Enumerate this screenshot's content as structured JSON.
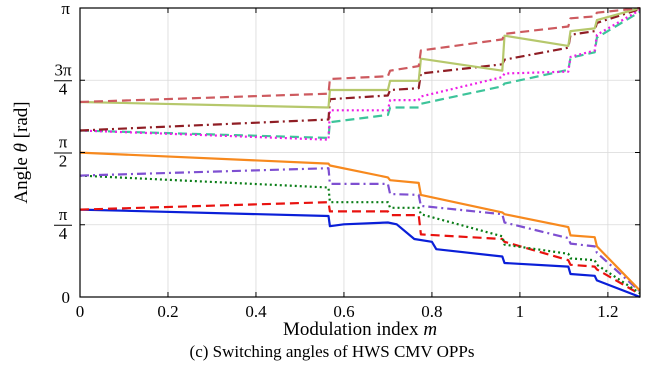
{
  "chart_data": {
    "type": "line",
    "caption": "(c) Switching angles of HWS CMV OPPs",
    "xlabel": "Modulation index",
    "xlabel_symbol": "m",
    "ylabel": "Angle",
    "ylabel_symbol": "θ",
    "ylabel_unit": "[rad]",
    "xlim": [
      0,
      1.273
    ],
    "ylim": [
      0,
      3.1416
    ],
    "grid": true,
    "x_ticks": [
      {
        "value": 0,
        "label": "0"
      },
      {
        "value": 0.2,
        "label": "0.2"
      },
      {
        "value": 0.4,
        "label": "0.4"
      },
      {
        "value": 0.6,
        "label": "0.6"
      },
      {
        "value": 0.8,
        "label": "0.8"
      },
      {
        "value": 1.0,
        "label": "1"
      },
      {
        "value": 1.2,
        "label": "1.2"
      }
    ],
    "y_ticks": [
      {
        "value": 0,
        "label": "0"
      },
      {
        "value": 0.7854,
        "label": "π/4",
        "num": "π",
        "den": "4"
      },
      {
        "value": 1.5708,
        "label": "π/2",
        "num": "π",
        "den": "2"
      },
      {
        "value": 2.3562,
        "label": "3π/4",
        "num": "3π",
        "den": "4"
      },
      {
        "value": 3.1416,
        "label": "π",
        "num": "π",
        "den": ""
      }
    ],
    "series": [
      {
        "color": "#0a1fd8",
        "dash": "solid",
        "points": [
          [
            0,
            0.95
          ],
          [
            0.565,
            0.88
          ],
          [
            0.568,
            0.77
          ],
          [
            0.6,
            0.79
          ],
          [
            0.7,
            0.81
          ],
          [
            0.72,
            0.79
          ],
          [
            0.76,
            0.63
          ],
          [
            0.8,
            0.6
          ],
          [
            0.81,
            0.52
          ],
          [
            0.96,
            0.44
          ],
          [
            0.965,
            0.37
          ],
          [
            1.11,
            0.33
          ],
          [
            1.115,
            0.25
          ],
          [
            1.17,
            0.23
          ],
          [
            1.175,
            0.18
          ],
          [
            1.273,
            0
          ]
        ]
      },
      {
        "color": "#e8120f",
        "dash": "dash",
        "points": [
          [
            0,
            0.95
          ],
          [
            0.565,
            1.03
          ],
          [
            0.568,
            0.93
          ],
          [
            0.7,
            0.93
          ],
          [
            0.705,
            0.89
          ],
          [
            0.77,
            0.89
          ],
          [
            0.775,
            0.68
          ],
          [
            0.96,
            0.63
          ],
          [
            0.965,
            0.6
          ],
          [
            1.11,
            0.4
          ],
          [
            1.115,
            0.35
          ],
          [
            1.17,
            0.33
          ],
          [
            1.175,
            0.3
          ],
          [
            1.273,
            0.03
          ]
        ]
      },
      {
        "color": "#0a7d17",
        "dash": "dot",
        "points": [
          [
            0,
            1.32
          ],
          [
            0.565,
            1.19
          ],
          [
            0.568,
            1.03
          ],
          [
            0.7,
            1.03
          ],
          [
            0.705,
            0.97
          ],
          [
            0.77,
            0.97
          ],
          [
            0.775,
            0.9
          ],
          [
            0.96,
            0.66
          ],
          [
            0.965,
            0.57
          ],
          [
            1.11,
            0.47
          ],
          [
            1.115,
            0.42
          ],
          [
            1.17,
            0.4
          ],
          [
            1.175,
            0.35
          ],
          [
            1.273,
            0.04
          ]
        ]
      },
      {
        "color": "#7e4fd1",
        "dash": "dashdot",
        "points": [
          [
            0,
            1.32
          ],
          [
            0.565,
            1.4
          ],
          [
            0.568,
            1.23
          ],
          [
            0.7,
            1.23
          ],
          [
            0.705,
            1.12
          ],
          [
            0.77,
            1.11
          ],
          [
            0.775,
            0.99
          ],
          [
            0.96,
            0.9
          ],
          [
            0.965,
            0.81
          ],
          [
            1.11,
            0.64
          ],
          [
            1.115,
            0.58
          ],
          [
            1.17,
            0.55
          ],
          [
            1.175,
            0.48
          ],
          [
            1.273,
            0.06
          ]
        ]
      },
      {
        "color": "#f7891e",
        "dash": "solid",
        "points": [
          [
            0,
            1.57
          ],
          [
            0.565,
            1.45
          ],
          [
            0.568,
            1.43
          ],
          [
            0.7,
            1.3
          ],
          [
            0.705,
            1.27
          ],
          [
            0.77,
            1.24
          ],
          [
            0.775,
            1.11
          ],
          [
            0.96,
            0.92
          ],
          [
            0.965,
            0.9
          ],
          [
            1.11,
            0.76
          ],
          [
            1.115,
            0.67
          ],
          [
            1.17,
            0.65
          ],
          [
            1.175,
            0.55
          ],
          [
            1.273,
            0.07
          ]
        ]
      },
      {
        "color": "#3dc49a",
        "dash": "dash",
        "points": [
          [
            0,
            1.81
          ],
          [
            0.565,
            1.73
          ],
          [
            0.568,
            1.9
          ],
          [
            0.7,
            1.98
          ],
          [
            0.705,
            2.06
          ],
          [
            0.77,
            2.06
          ],
          [
            0.775,
            2.1
          ],
          [
            0.96,
            2.29
          ],
          [
            0.965,
            2.32
          ],
          [
            1.11,
            2.47
          ],
          [
            1.115,
            2.6
          ],
          [
            1.17,
            2.66
          ],
          [
            1.175,
            2.82
          ],
          [
            1.273,
            3.1
          ]
        ]
      },
      {
        "color": "#ee1ee6",
        "dash": "dot",
        "points": [
          [
            0,
            1.81
          ],
          [
            0.565,
            1.71
          ],
          [
            0.568,
            2.03
          ],
          [
            0.7,
            2.03
          ],
          [
            0.705,
            2.14
          ],
          [
            0.77,
            2.14
          ],
          [
            0.775,
            2.18
          ],
          [
            0.96,
            2.39
          ],
          [
            0.965,
            2.43
          ],
          [
            1.11,
            2.45
          ],
          [
            1.115,
            2.61
          ],
          [
            1.17,
            2.68
          ],
          [
            1.175,
            2.85
          ],
          [
            1.273,
            3.12
          ]
        ]
      },
      {
        "color": "#8f1d24",
        "dash": "dashdot",
        "points": [
          [
            0,
            1.81
          ],
          [
            0.565,
            1.93
          ],
          [
            0.568,
            2.15
          ],
          [
            0.7,
            2.19
          ],
          [
            0.705,
            2.25
          ],
          [
            0.77,
            2.27
          ],
          [
            0.775,
            2.43
          ],
          [
            0.96,
            2.53
          ],
          [
            0.965,
            2.58
          ],
          [
            1.11,
            2.71
          ],
          [
            1.115,
            2.85
          ],
          [
            1.17,
            2.89
          ],
          [
            1.175,
            2.98
          ],
          [
            1.273,
            3.13
          ]
        ]
      },
      {
        "color": "#b6c86c",
        "dash": "solid",
        "points": [
          [
            0,
            2.12
          ],
          [
            0.565,
            2.06
          ],
          [
            0.568,
            2.25
          ],
          [
            0.7,
            2.25
          ],
          [
            0.705,
            2.35
          ],
          [
            0.77,
            2.35
          ],
          [
            0.775,
            2.59
          ],
          [
            0.96,
            2.46
          ],
          [
            0.965,
            2.84
          ],
          [
            1.11,
            2.73
          ],
          [
            1.115,
            2.89
          ],
          [
            1.17,
            2.92
          ],
          [
            1.175,
            3.01
          ],
          [
            1.273,
            3.14
          ]
        ]
      },
      {
        "color": "#cd5a5f",
        "dash": "dash",
        "points": [
          [
            0,
            2.12
          ],
          [
            0.565,
            2.21
          ],
          [
            0.568,
            2.37
          ],
          [
            0.7,
            2.4
          ],
          [
            0.705,
            2.46
          ],
          [
            0.77,
            2.51
          ],
          [
            0.775,
            2.68
          ],
          [
            0.96,
            2.8
          ],
          [
            0.965,
            2.86
          ],
          [
            1.11,
            2.94
          ],
          [
            1.115,
            3.03
          ],
          [
            1.17,
            3.05
          ],
          [
            1.175,
            3.09
          ],
          [
            1.273,
            3.14
          ]
        ]
      }
    ]
  }
}
